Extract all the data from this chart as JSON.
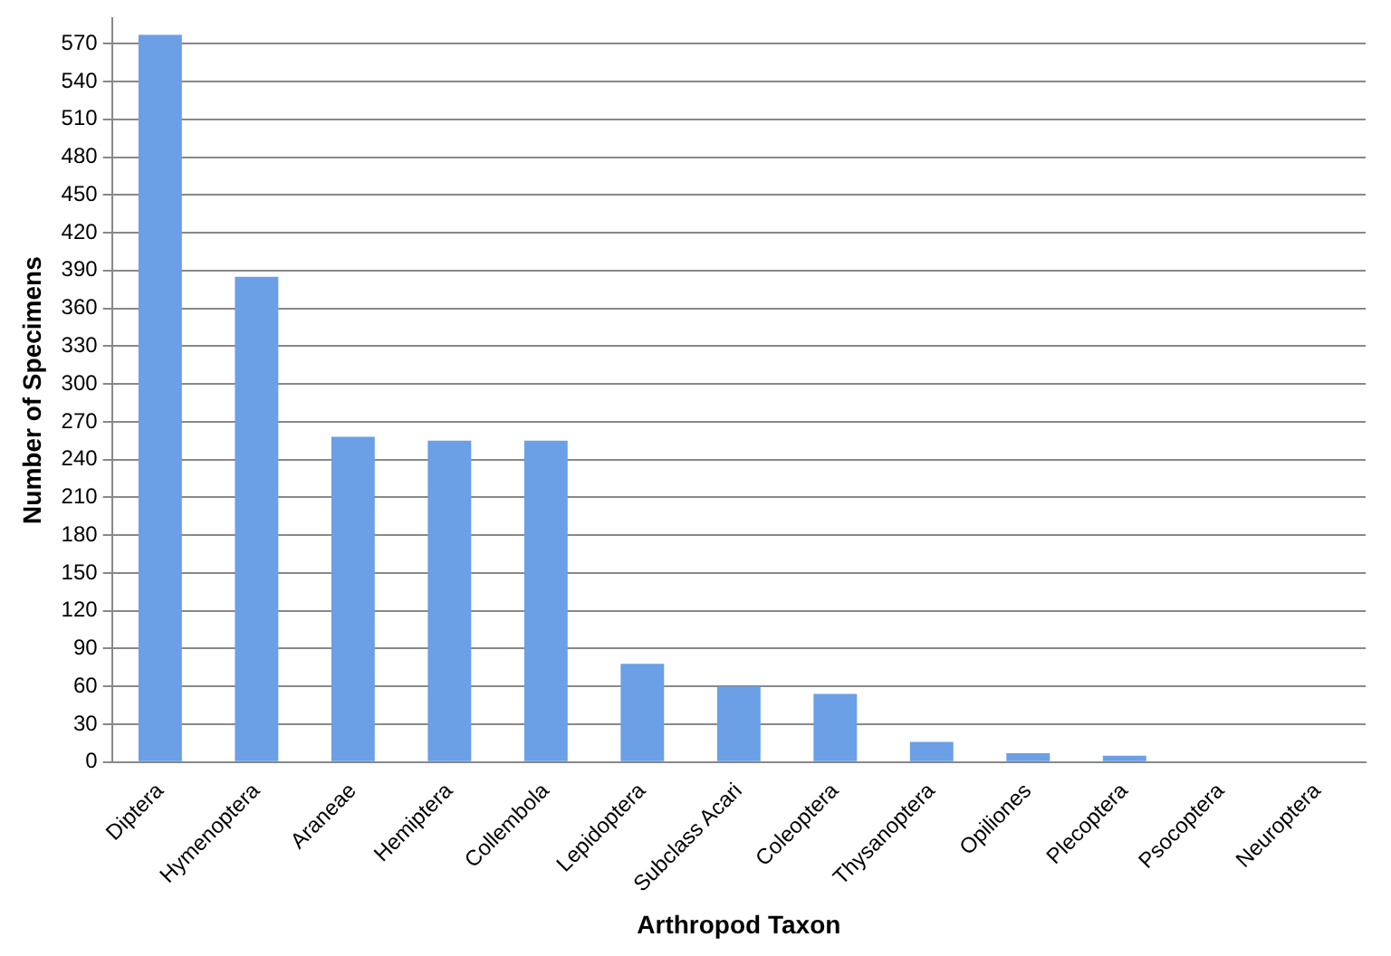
{
  "chart_data": {
    "type": "bar",
    "xlabel": "Arthropod Taxon",
    "ylabel": "Number of Specimens",
    "categories": [
      "Diptera",
      "Hymenoptera",
      "Araneae",
      "Hemiptera",
      "Collembola",
      "Lepidoptera",
      "Subclass Acari",
      "Coleoptera",
      "Thysanoptera",
      "Opiliones",
      "Plecoptera",
      "Psocoptera",
      "Neuroptera"
    ],
    "values": [
      577,
      385,
      258,
      255,
      255,
      78,
      60,
      54,
      16,
      7,
      5,
      0,
      0
    ],
    "color": "#6b9fe6",
    "ylim": [
      0,
      590
    ],
    "yticks": [
      0,
      30,
      60,
      90,
      120,
      150,
      180,
      210,
      240,
      270,
      300,
      330,
      360,
      390,
      420,
      450,
      480,
      510,
      540,
      570
    ],
    "grid": "y",
    "legend": false
  }
}
